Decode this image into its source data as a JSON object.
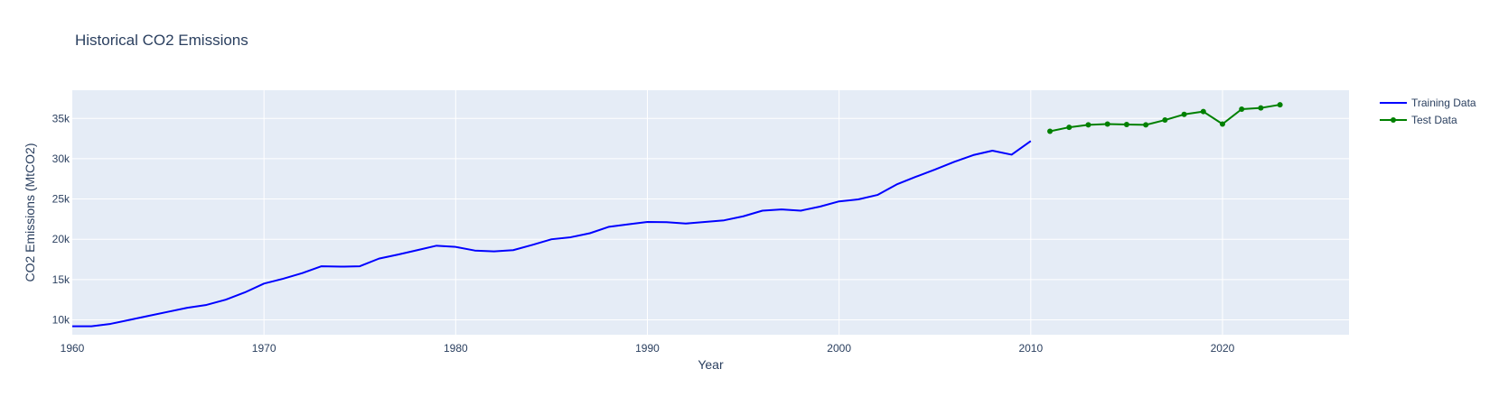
{
  "chart_data": {
    "type": "line",
    "title": "Historical CO2 Emissions",
    "xlabel": "Year",
    "ylabel": "CO2 Emissions (MtCO2)",
    "xlim": [
      1960,
      2026.6
    ],
    "ylim": [
      8150,
      38500
    ],
    "x_ticks": [
      1960,
      1970,
      1980,
      1990,
      2000,
      2010,
      2020
    ],
    "y_ticks": [
      10000,
      15000,
      20000,
      25000,
      30000,
      35000
    ],
    "y_tick_labels": [
      "10k",
      "15k",
      "20k",
      "25k",
      "30k",
      "35k"
    ],
    "grid": true,
    "background": "#e5ecf6",
    "legend_position": "top-right",
    "series": [
      {
        "name": "Training Data",
        "color": "#0000ff",
        "mode": "lines",
        "x": [
          1960,
          1961,
          1962,
          1963,
          1964,
          1965,
          1966,
          1967,
          1968,
          1969,
          1970,
          1971,
          1972,
          1973,
          1974,
          1975,
          1976,
          1977,
          1978,
          1979,
          1980,
          1981,
          1982,
          1983,
          1984,
          1985,
          1986,
          1987,
          1988,
          1989,
          1990,
          1991,
          1992,
          1993,
          1994,
          1995,
          1996,
          1997,
          1998,
          1999,
          2000,
          2001,
          2002,
          2003,
          2004,
          2005,
          2006,
          2007,
          2008,
          2009,
          2010
        ],
        "y": [
          9200,
          9200,
          9500,
          10000,
          10500,
          11000,
          11500,
          11850,
          12500,
          13400,
          14500,
          15100,
          15800,
          16650,
          16600,
          16650,
          17600,
          18100,
          18650,
          19200,
          19050,
          18600,
          18500,
          18650,
          19300,
          20000,
          20250,
          20750,
          21550,
          21850,
          22150,
          22120,
          21950,
          22150,
          22350,
          22850,
          23550,
          23700,
          23550,
          24050,
          24700,
          24950,
          25500,
          26800,
          27750,
          28650,
          29600,
          30450,
          31000,
          30500,
          32200
        ]
      },
      {
        "name": "Test Data",
        "color": "#008000",
        "mode": "lines+markers",
        "x": [
          2011,
          2012,
          2013,
          2014,
          2015,
          2016,
          2017,
          2018,
          2019,
          2020,
          2021,
          2022,
          2023
        ],
        "y": [
          33400,
          33900,
          34200,
          34300,
          34250,
          34200,
          34800,
          35500,
          35850,
          34300,
          36150,
          36300,
          36700
        ]
      }
    ]
  }
}
